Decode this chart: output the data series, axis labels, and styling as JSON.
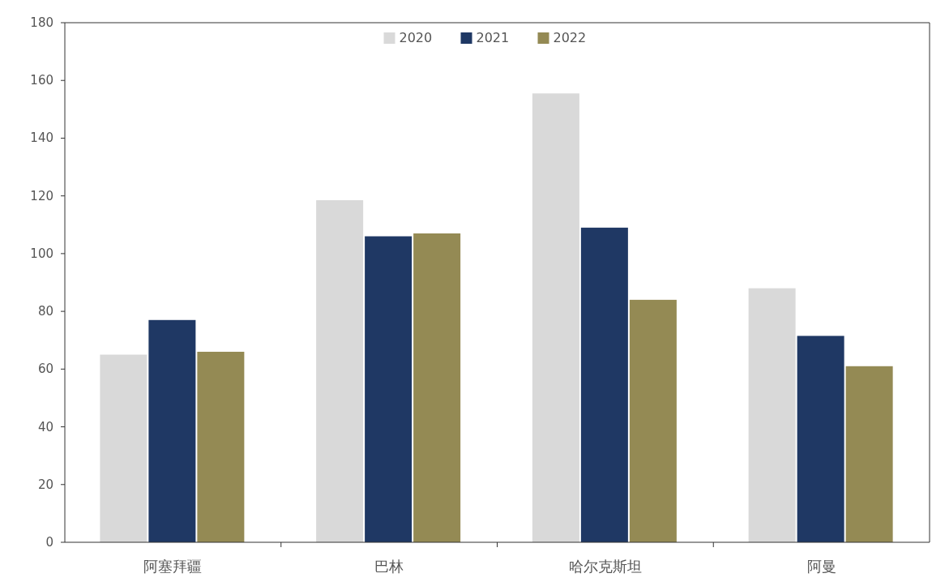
{
  "chart_data": {
    "type": "bar",
    "categories": [
      "阿塞拜疆",
      "巴林",
      "哈尔克斯坦",
      "阿曼"
    ],
    "series": [
      {
        "name": "2020",
        "color": "#d9d9d9",
        "values": [
          65,
          118.5,
          155.5,
          88
        ]
      },
      {
        "name": "2021",
        "color": "#1f3864",
        "values": [
          77,
          106,
          109,
          71.5
        ]
      },
      {
        "name": "2022",
        "color": "#948a54",
        "values": [
          66,
          107,
          84,
          61
        ]
      }
    ],
    "ylim": [
      0,
      180
    ],
    "yticks": [
      0,
      20,
      40,
      60,
      80,
      100,
      120,
      140,
      160,
      180
    ],
    "grid": false,
    "legend": "top"
  }
}
